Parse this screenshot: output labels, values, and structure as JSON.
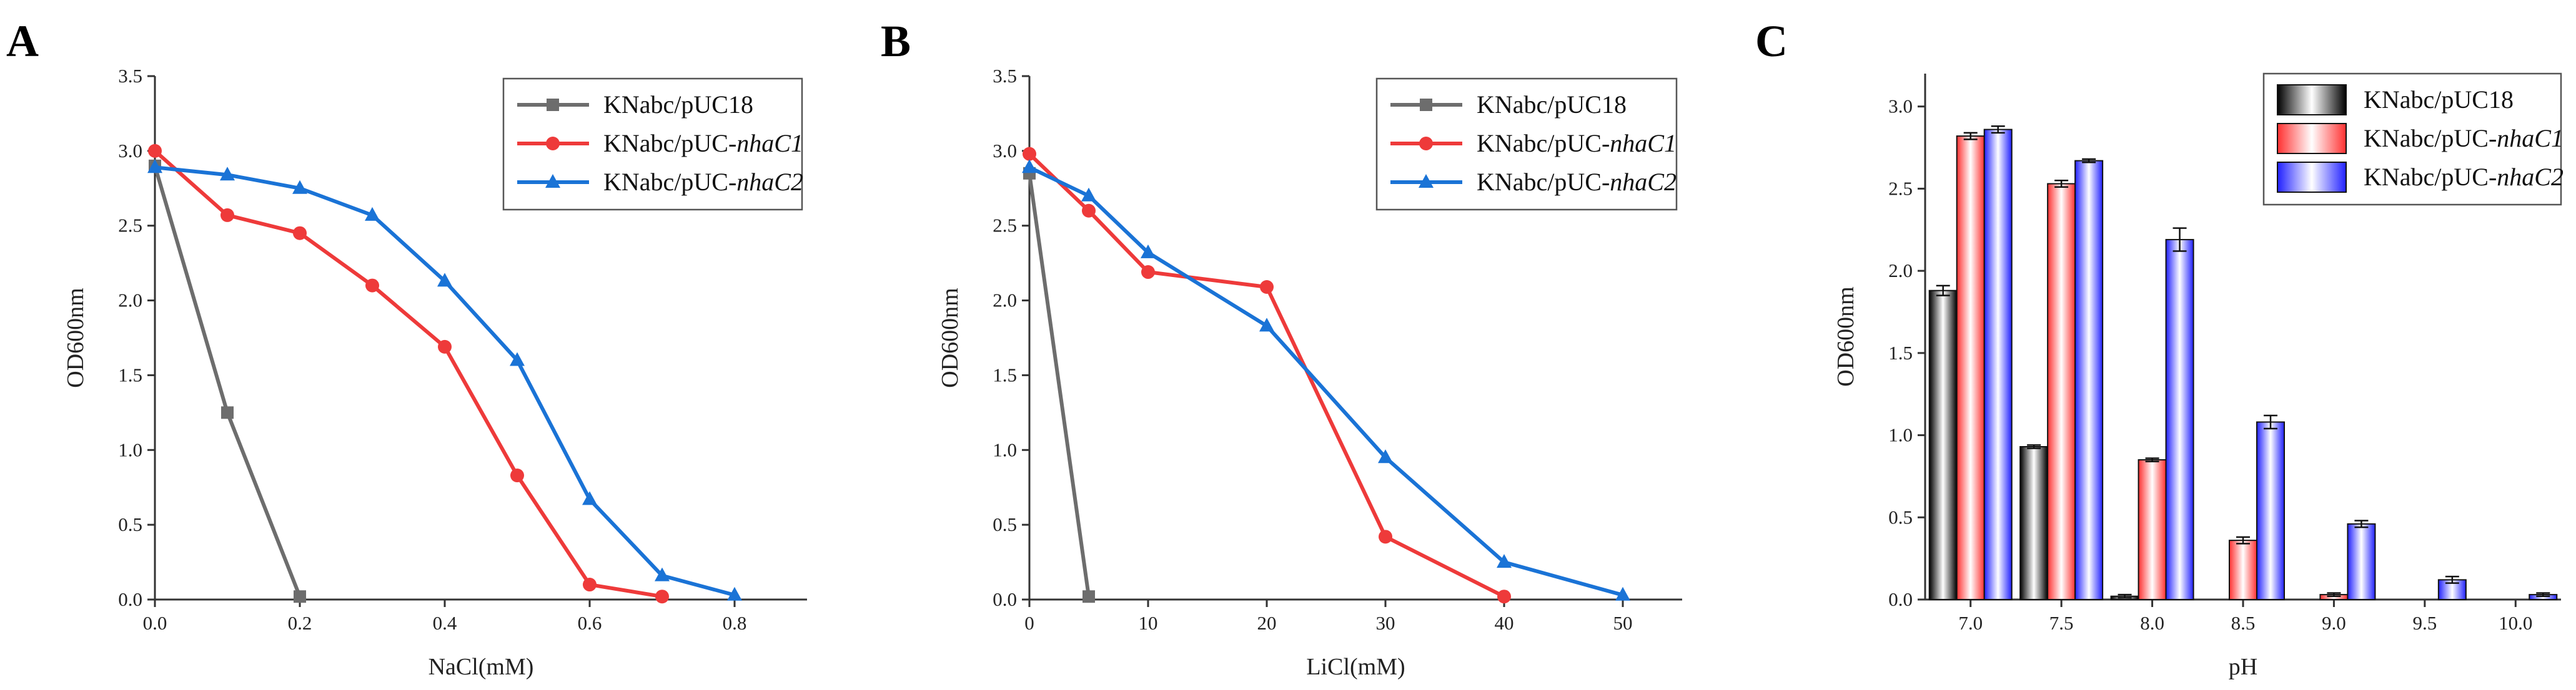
{
  "chart_data": [
    {
      "panel": "A",
      "type": "line",
      "xlabel": "NaCl(mM)",
      "ylabel": "OD600nm",
      "xlim": [
        0,
        0.9
      ],
      "ylim": [
        0,
        3.5
      ],
      "xticks": [
        "0.0",
        "0.2",
        "0.4",
        "0.6",
        "0.8"
      ],
      "yticks": [
        "0.0",
        "0.5",
        "1.0",
        "1.5",
        "2.0",
        "2.5",
        "3.0",
        "3.5"
      ],
      "legend": {
        "position": "top-right",
        "entries": [
          {
            "prefix": "KNabc/pUC18",
            "gene": ""
          },
          {
            "prefix": "KNabc/pUC-",
            "gene": "nhaC1"
          },
          {
            "prefix": "KNabc/pUC-",
            "gene": "nhaC2"
          }
        ]
      },
      "series": [
        {
          "color": "#6d6d6d",
          "marker": "square",
          "x": [
            0,
            0.1,
            0.2
          ],
          "y": [
            2.9,
            1.25,
            0.02
          ]
        },
        {
          "color": "#ee3a3a",
          "marker": "circle",
          "x": [
            0,
            0.1,
            0.2,
            0.3,
            0.4,
            0.5,
            0.6,
            0.7
          ],
          "y": [
            3.0,
            2.57,
            2.45,
            2.1,
            1.69,
            0.83,
            0.1,
            0.02
          ]
        },
        {
          "color": "#1a73d6",
          "marker": "triangle",
          "x": [
            0,
            0.1,
            0.2,
            0.3,
            0.4,
            0.5,
            0.6,
            0.7,
            0.8
          ],
          "y": [
            2.89,
            2.84,
            2.75,
            2.57,
            2.13,
            1.6,
            0.67,
            0.16,
            0.03
          ]
        }
      ]
    },
    {
      "panel": "B",
      "type": "line",
      "xlabel": "LiCl(mM)",
      "ylabel": "OD600nm",
      "xlim": [
        0,
        55
      ],
      "ylim": [
        0,
        3.5
      ],
      "xticks": [
        "0",
        "10",
        "20",
        "30",
        "40",
        "50"
      ],
      "yticks": [
        "0.0",
        "0.5",
        "1.0",
        "1.5",
        "2.0",
        "2.5",
        "3.0",
        "3.5"
      ],
      "legend": {
        "position": "top-right",
        "entries": [
          {
            "prefix": "KNabc/pUC18",
            "gene": ""
          },
          {
            "prefix": "KNabc/pUC-",
            "gene": "nhaC1"
          },
          {
            "prefix": "KNabc/pUC-",
            "gene": "nhaC2"
          }
        ]
      },
      "series": [
        {
          "color": "#6d6d6d",
          "marker": "square",
          "x": [
            0,
            5
          ],
          "y": [
            2.85,
            0.02
          ]
        },
        {
          "color": "#ee3a3a",
          "marker": "circle",
          "x": [
            0,
            5,
            10,
            20,
            30,
            40
          ],
          "y": [
            2.98,
            2.6,
            2.19,
            2.09,
            0.42,
            0.02
          ]
        },
        {
          "color": "#1a73d6",
          "marker": "triangle",
          "x": [
            0,
            5,
            10,
            20,
            30,
            40,
            50
          ],
          "y": [
            2.89,
            2.7,
            2.32,
            1.83,
            0.95,
            0.25,
            0.03
          ]
        }
      ]
    },
    {
      "panel": "C",
      "type": "bar",
      "xlabel": "pH",
      "ylabel": "OD600nm",
      "ylim": [
        0,
        3.2
      ],
      "categories": [
        "7.0",
        "7.5",
        "8.0",
        "8.5",
        "9.0",
        "9.5",
        "10.0"
      ],
      "yticks": [
        "0.0",
        "0.5",
        "1.0",
        "1.5",
        "2.0",
        "2.5",
        "3.0"
      ],
      "legend": {
        "position": "top-right",
        "entries": [
          {
            "prefix": "KNabc/pUC18",
            "gene": ""
          },
          {
            "prefix": "KNabc/pUC-",
            "gene": "nhaC1"
          },
          {
            "prefix": "KNabc/pUC-",
            "gene": "nhaC2"
          }
        ]
      },
      "series": [
        {
          "color": "#3a3a3a",
          "values": [
            1.88,
            0.93,
            0.02,
            0,
            0,
            0,
            0
          ],
          "errors": [
            0.03,
            0.01,
            0.01,
            0,
            0,
            0,
            0
          ]
        },
        {
          "color": "#ff5a5a",
          "values": [
            2.82,
            2.53,
            0.85,
            0.36,
            0.03,
            0,
            0
          ],
          "errors": [
            0.02,
            0.02,
            0.01,
            0.02,
            0.01,
            0,
            0
          ]
        },
        {
          "color": "#4a4aff",
          "values": [
            2.86,
            2.67,
            2.19,
            1.08,
            0.46,
            0.12,
            0.03
          ],
          "errors": [
            0.02,
            0.01,
            0.07,
            0.04,
            0.02,
            0.02,
            0.01
          ]
        }
      ]
    }
  ]
}
